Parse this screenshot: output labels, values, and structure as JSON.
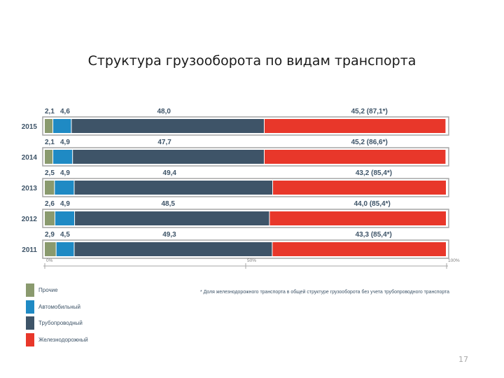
{
  "slide": {
    "title": "Структура грузооборота по видам транспорта",
    "page_number": "17"
  },
  "colors": {
    "prochie": "#8a9a6e",
    "auto": "#1f8ac4",
    "pipeline": "#3e5468",
    "rail": "#e8372a",
    "frame": "#a6a6a6"
  },
  "chart_data": {
    "type": "bar",
    "orientation": "horizontal",
    "stacked": true,
    "categories": [
      "2015",
      "2014",
      "2013",
      "2012",
      "2011"
    ],
    "series": [
      {
        "name": "Прочие",
        "values": [
          2.1,
          2.1,
          2.5,
          2.6,
          2.9
        ],
        "labels": [
          "2,1",
          "2,1",
          "2,5",
          "2,6",
          "2,9"
        ]
      },
      {
        "name": "Автомобильный",
        "values": [
          4.6,
          4.9,
          4.9,
          4.9,
          4.5
        ],
        "labels": [
          "4,6",
          "4,9",
          "4,9",
          "4,9",
          "4,5"
        ]
      },
      {
        "name": "Трубопроводный",
        "values": [
          48.0,
          47.7,
          49.4,
          48.5,
          49.3
        ],
        "labels": [
          "48,0",
          "47,7",
          "49,4",
          "48,5",
          "49,3"
        ]
      },
      {
        "name": "Железнодорожный",
        "values": [
          45.2,
          45.2,
          43.2,
          44.0,
          43.3
        ],
        "labels": [
          "45,2 (87,1*)",
          "45,2 (86,6*)",
          "43,2 (85,4*)",
          "44,0 (85,4*)",
          "43,3 (85,4*)"
        ]
      }
    ],
    "xlim": [
      0,
      100
    ],
    "x_ticks": [
      {
        "value": 0,
        "label": "0%"
      },
      {
        "value": 50,
        "label": "50%"
      },
      {
        "value": 100,
        "label": "100%"
      }
    ],
    "legend": {
      "placement": "bottom-left",
      "items": [
        "Прочие",
        "Автомобильный",
        "Трубопроводный",
        "Железнодорожный"
      ]
    },
    "footnote": "* Доля железнодорожного транспорта в общей структуре грузооборота без учета трубопроводного транспорта"
  }
}
